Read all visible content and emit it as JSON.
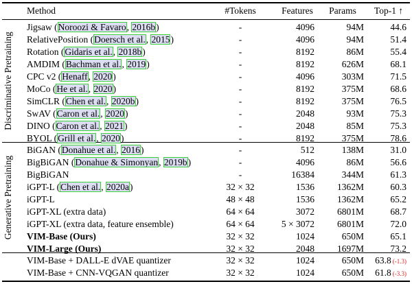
{
  "header": {
    "method": "Method",
    "tokens": "#Tokens",
    "features": "Features",
    "params": "Params",
    "top1": "Top-1 ↑"
  },
  "groups": {
    "discriminative": "Discriminative Pretraining",
    "generative": "Generative Pretraining"
  },
  "rows": [
    {
      "name": "Jigsaw",
      "cite": "Noroozi & Favaro",
      "year": "2016b",
      "tokens": "-",
      "features": "4096",
      "params": "94M",
      "top1": "44.6"
    },
    {
      "name": "RelativePosition",
      "cite": "Doersch et al.",
      "year": "2015",
      "tokens": "-",
      "features": "4096",
      "params": "94M",
      "top1": "51.4"
    },
    {
      "name": "Rotation",
      "cite": "Gidaris et al.",
      "year": "2018b",
      "tokens": "-",
      "features": "8192",
      "params": "86M",
      "top1": "55.4"
    },
    {
      "name": "AMDIM",
      "cite": "Bachman et al.",
      "year": "2019",
      "tokens": "-",
      "features": "8192",
      "params": "626M",
      "top1": "68.1"
    },
    {
      "name": "CPC v2",
      "cite": "Henaff",
      "year": "2020",
      "tokens": "-",
      "features": "4096",
      "params": "303M",
      "top1": "71.5"
    },
    {
      "name": "MoCo",
      "cite": "He et al.",
      "year": "2020",
      "tokens": "-",
      "features": "8192",
      "params": "375M",
      "top1": "68.6"
    },
    {
      "name": "SimCLR",
      "cite": "Chen et al.",
      "year": "2020b",
      "tokens": "-",
      "features": "8192",
      "params": "375M",
      "top1": "76.5"
    },
    {
      "name": "SwAV",
      "cite": "Caron et al.",
      "year": "2020",
      "tokens": "-",
      "features": "2048",
      "params": "93M",
      "top1": "75.3"
    },
    {
      "name": "DINO",
      "cite": "Caron et al.",
      "year": "2021",
      "tokens": "-",
      "features": "2048",
      "params": "85M",
      "top1": "75.3"
    },
    {
      "name": "BYOL",
      "cite": "Grill et al.",
      "year": "2020",
      "tokens": "-",
      "features": "8192",
      "params": "375M",
      "top1": "78.6"
    },
    {
      "name": "BiGAN",
      "cite": "Donahue et al.",
      "year": "2016",
      "tokens": "-",
      "features": "512",
      "params": "138M",
      "top1": "31.0"
    },
    {
      "name": "BigBiGAN",
      "cite": "Donahue & Simonyan",
      "year": "2019b",
      "tokens": "-",
      "features": "4096",
      "params": "86M",
      "top1": "56.6"
    },
    {
      "name": "BigBiGAN",
      "cite": "",
      "year": "",
      "tokens": "-",
      "features": "16384",
      "params": "344M",
      "top1": "61.3"
    },
    {
      "name": "iGPT-L",
      "cite": "Chen et al.",
      "year": "2020a",
      "tokens": "32 × 32",
      "features": "1536",
      "params": "1362M",
      "top1": "60.3"
    },
    {
      "name": "iGPT-L",
      "cite": "",
      "year": "",
      "tokens": "48 × 48",
      "features": "1536",
      "params": "1362M",
      "top1": "65.2"
    },
    {
      "name": "iGPT-XL (extra data)",
      "cite": "",
      "year": "",
      "tokens": "64 × 64",
      "features": "3072",
      "params": "6801M",
      "top1": "68.7"
    },
    {
      "name": "iGPT-XL (extra data, feature ensemble)",
      "cite": "",
      "year": "",
      "tokens": "64 × 64",
      "features": "5 × 3072",
      "params": "6801M",
      "top1": "72.0"
    },
    {
      "name": "VIM-Base (Ours)",
      "cite": "",
      "year": "",
      "tokens": "32 × 32",
      "features": "1024",
      "params": "650M",
      "top1": "65.1",
      "bold": true
    },
    {
      "name": "VIM-Large (Ours)",
      "cite": "",
      "year": "",
      "tokens": "32 × 32",
      "features": "2048",
      "params": "1697M",
      "top1": "73.2",
      "bold": true
    },
    {
      "name": "VIM-Base + DALL-E dVAE quantizer",
      "cite": "",
      "year": "",
      "tokens": "32 × 32",
      "features": "1024",
      "params": "650M",
      "top1": "63.8",
      "delta": "(-1.3)"
    },
    {
      "name": "VIM-Base + CNN-VQGAN quantizer",
      "cite": "",
      "year": "",
      "tokens": "32 × 32",
      "features": "1024",
      "params": "650M",
      "top1": "61.8",
      "delta": "(-3.3)"
    }
  ]
}
